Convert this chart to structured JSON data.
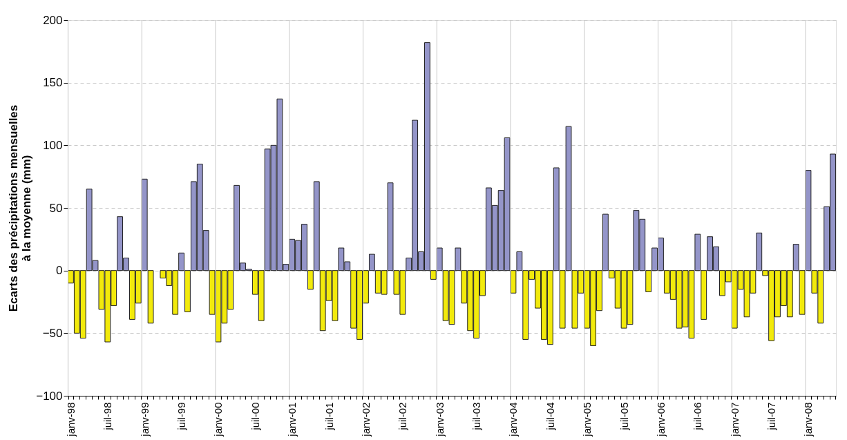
{
  "chart_data": {
    "type": "bar",
    "ylabel": "Ecarts des précipitations mensuelles\nà la moyenne (mm)",
    "categories": [
      "janv-98",
      null,
      null,
      null,
      null,
      null,
      "juil-98",
      null,
      null,
      null,
      null,
      null,
      "janv-99",
      null,
      null,
      null,
      null,
      null,
      "juil-99",
      null,
      null,
      null,
      null,
      null,
      "janv-00",
      null,
      null,
      null,
      null,
      null,
      "juil-00",
      null,
      null,
      null,
      null,
      null,
      "janv-01",
      null,
      null,
      null,
      null,
      null,
      "juil-01",
      null,
      null,
      null,
      null,
      null,
      "janv-02",
      null,
      null,
      null,
      null,
      null,
      "juil-02",
      null,
      null,
      null,
      null,
      null,
      "janv-03",
      null,
      null,
      null,
      null,
      null,
      "juil-03",
      null,
      null,
      null,
      null,
      null,
      "janv-04",
      null,
      null,
      null,
      null,
      null,
      "juil-04",
      null,
      null,
      null,
      null,
      null,
      "janv-05",
      null,
      null,
      null,
      null,
      null,
      "juil-05",
      null,
      null,
      null,
      null,
      null,
      "janv-06",
      null,
      null,
      null,
      null,
      null,
      "juil-06",
      null,
      null,
      null,
      null,
      null,
      "janv-07",
      null,
      null,
      null,
      null,
      null,
      "juil-07",
      null,
      null,
      null,
      null,
      null,
      "janv-08",
      null,
      null,
      null,
      null
    ],
    "values": [
      -10,
      -50,
      -54,
      65,
      8,
      -31,
      -57,
      -28,
      43,
      10,
      -39,
      -26,
      73,
      -42,
      null,
      -6,
      -12,
      -35,
      14,
      -33,
      71,
      85,
      32,
      -35,
      -57,
      -42,
      -31,
      68,
      6,
      1,
      -19,
      -40,
      97,
      100,
      137,
      5,
      25,
      24,
      37,
      -15,
      71,
      -48,
      -24,
      -40,
      18,
      7,
      -46,
      -55,
      -26,
      13,
      -18,
      -19,
      70,
      -19,
      -35,
      10,
      120,
      15,
      182,
      -7,
      18,
      -40,
      -43,
      18,
      -26,
      -48,
      -54,
      -20,
      66,
      52,
      64,
      106,
      -18,
      15,
      -55,
      -7,
      -30,
      -55,
      -59,
      82,
      -46,
      115,
      -46,
      -18,
      -46,
      -60,
      -32,
      45,
      -6,
      -30,
      -46,
      -43,
      48,
      41,
      -17,
      18,
      26,
      -18,
      -23,
      -46,
      -45,
      -54,
      29,
      -39,
      27,
      19,
      -20,
      -9,
      -46,
      -15,
      -37,
      -18,
      30,
      -4,
      -56,
      -37,
      -28,
      -37,
      21,
      -35,
      80,
      -18,
      -42,
      51,
      93
    ],
    "colors": [
      "#f2ea0c",
      "#f2ea0c",
      "#f2ea0c",
      "#9495c9",
      "#9495c9",
      "#f2ea0c",
      "#f2ea0c",
      "#f2ea0c",
      "#9495c9",
      "#9495c9",
      "#f2ea0c",
      "#f2ea0c",
      "#9495c9",
      "#f2ea0c",
      null,
      "#f2ea0c",
      "#f2ea0c",
      "#f2ea0c",
      "#9495c9",
      "#f2ea0c",
      "#9495c9",
      "#9495c9",
      "#9495c9",
      "#f2ea0c",
      "#f2ea0c",
      "#f2ea0c",
      "#f2ea0c",
      "#9495c9",
      "#9495c9",
      "#9495c9",
      "#f2ea0c",
      "#f2ea0c",
      "#9495c9",
      "#9495c9",
      "#9495c9",
      "#9495c9",
      "#9495c9",
      "#9495c9",
      "#9495c9",
      "#f2ea0c",
      "#9495c9",
      "#f2ea0c",
      "#f2ea0c",
      "#f2ea0c",
      "#9495c9",
      "#9495c9",
      "#f2ea0c",
      "#f2ea0c",
      "#f2ea0c",
      "#9495c9",
      "#f2ea0c",
      "#f2ea0c",
      "#9495c9",
      "#f2ea0c",
      "#f2ea0c",
      "#9495c9",
      "#9495c9",
      "#9495c9",
      "#9495c9",
      "#f2ea0c",
      "#9495c9",
      "#f2ea0c",
      "#f2ea0c",
      "#9495c9",
      "#f2ea0c",
      "#f2ea0c",
      "#f2ea0c",
      "#f2ea0c",
      "#9495c9",
      "#9495c9",
      "#9495c9",
      "#9495c9",
      "#f2ea0c",
      "#9495c9",
      "#f2ea0c",
      "#f2ea0c",
      "#f2ea0c",
      "#f2ea0c",
      "#f2ea0c",
      "#9495c9",
      "#f2ea0c",
      "#9495c9",
      "#f2ea0c",
      "#f2ea0c",
      "#f2ea0c",
      "#f2ea0c",
      "#f2ea0c",
      "#9495c9",
      "#f2ea0c",
      "#f2ea0c",
      "#f2ea0c",
      "#f2ea0c",
      "#9495c9",
      "#9495c9",
      "#f2ea0c",
      "#9495c9",
      "#9495c9",
      "#f2ea0c",
      "#f2ea0c",
      "#f2ea0c",
      "#f2ea0c",
      "#f2ea0c",
      "#9495c9",
      "#f2ea0c",
      "#9495c9",
      "#9495c9",
      "#f2ea0c",
      "#f2ea0c",
      "#f2ea0c",
      "#f2ea0c",
      "#f2ea0c",
      "#f2ea0c",
      "#9495c9",
      "#f2ea0c",
      "#f2ea0c",
      "#f2ea0c",
      "#f2ea0c",
      "#f2ea0c",
      "#9495c9",
      "#f2ea0c",
      "#9495c9",
      "#f2ea0c",
      "#f2ea0c",
      "#9495c9",
      "#9495c9"
    ],
    "ylim": [
      -100,
      200
    ],
    "yticks": [
      -100,
      -50,
      0,
      50,
      100,
      150,
      200
    ],
    "grid": true
  }
}
